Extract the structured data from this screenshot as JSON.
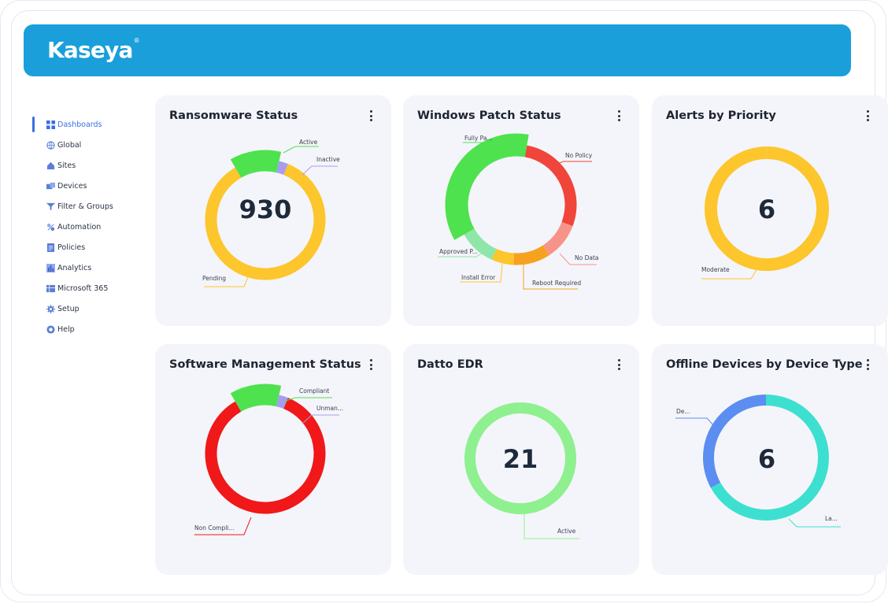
{
  "app": {
    "brand": "Kaseya",
    "brand_mark": "®"
  },
  "sidebar": {
    "items": [
      {
        "label": "Dashboards",
        "icon": "grid-icon",
        "active": true
      },
      {
        "label": "Global",
        "icon": "globe-icon"
      },
      {
        "label": "Sites",
        "icon": "home-icon"
      },
      {
        "label": "Devices",
        "icon": "devices-icon"
      },
      {
        "label": "Filter & Groups",
        "icon": "filter-icon"
      },
      {
        "label": "Automation",
        "icon": "automation-icon"
      },
      {
        "label": "Policies",
        "icon": "policies-icon"
      },
      {
        "label": "Analytics",
        "icon": "analytics-icon"
      },
      {
        "label": "Microsoft 365",
        "icon": "microsoft-icon"
      },
      {
        "label": "Setup",
        "icon": "gear-icon"
      },
      {
        "label": "Help",
        "icon": "help-icon"
      }
    ]
  },
  "colors": {
    "brand_bar": "#1a9fdb",
    "active_nav": "#3b6fe0",
    "pending": "#fcc62c",
    "active_green": "#4ee24e",
    "inactive_purple": "#a79cf0",
    "red": "#f01818",
    "teal": "#3de0d0",
    "blue": "#5b8ef0"
  },
  "cards": [
    {
      "title": "Ransomware Status",
      "center": "930",
      "chart_data": {
        "type": "donut",
        "slices": [
          {
            "name": "Active",
            "share": 0.12,
            "color": "#4ee24e"
          },
          {
            "name": "Inactive",
            "share": 0.025,
            "color": "#a79cf0"
          },
          {
            "name": "Pending",
            "share": 0.855,
            "color": "#fcc62c"
          }
        ]
      }
    },
    {
      "title": "Windows Patch Status",
      "center": "",
      "chart_data": {
        "type": "donut",
        "slices": [
          {
            "name": "No Policy",
            "share": 0.28,
            "color": "#f0453a"
          },
          {
            "name": "No Data",
            "share": 0.1,
            "color": "#f7948a"
          },
          {
            "name": "Reboot Required",
            "share": 0.1,
            "color": "#f7a21e"
          },
          {
            "name": "Install Error",
            "share": 0.06,
            "color": "#fcc62c"
          },
          {
            "name": "Approved P...",
            "share": 0.1,
            "color": "#8ee6a8"
          },
          {
            "name": "Fully Pa...",
            "share": 0.36,
            "color": "#4ee24e"
          }
        ]
      }
    },
    {
      "title": "Alerts by Priority",
      "center": "6",
      "chart_data": {
        "type": "donut",
        "slices": [
          {
            "name": "Moderate",
            "share": 1.0,
            "color": "#fcc62c"
          }
        ]
      }
    },
    {
      "title": "Software Management Status",
      "center": "",
      "chart_data": {
        "type": "donut",
        "slices": [
          {
            "name": "Compliant",
            "share": 0.12,
            "color": "#4ee24e"
          },
          {
            "name": "Unman...",
            "share": 0.025,
            "color": "#a79cf0"
          },
          {
            "name": "Non Compli...",
            "share": 0.855,
            "color": "#f01818"
          }
        ]
      }
    },
    {
      "title": "Datto EDR",
      "center": "21",
      "chart_data": {
        "type": "donut",
        "slices": [
          {
            "name": "Active",
            "share": 1.0,
            "color": "#8ff08f"
          }
        ]
      }
    },
    {
      "title": "Offline Devices by Device Type",
      "center": "6",
      "chart_data": {
        "type": "donut",
        "slices": [
          {
            "name": "La...",
            "share": 0.67,
            "color": "#3de0d0"
          },
          {
            "name": "De...",
            "share": 0.33,
            "color": "#5b8ef0"
          }
        ]
      }
    }
  ]
}
